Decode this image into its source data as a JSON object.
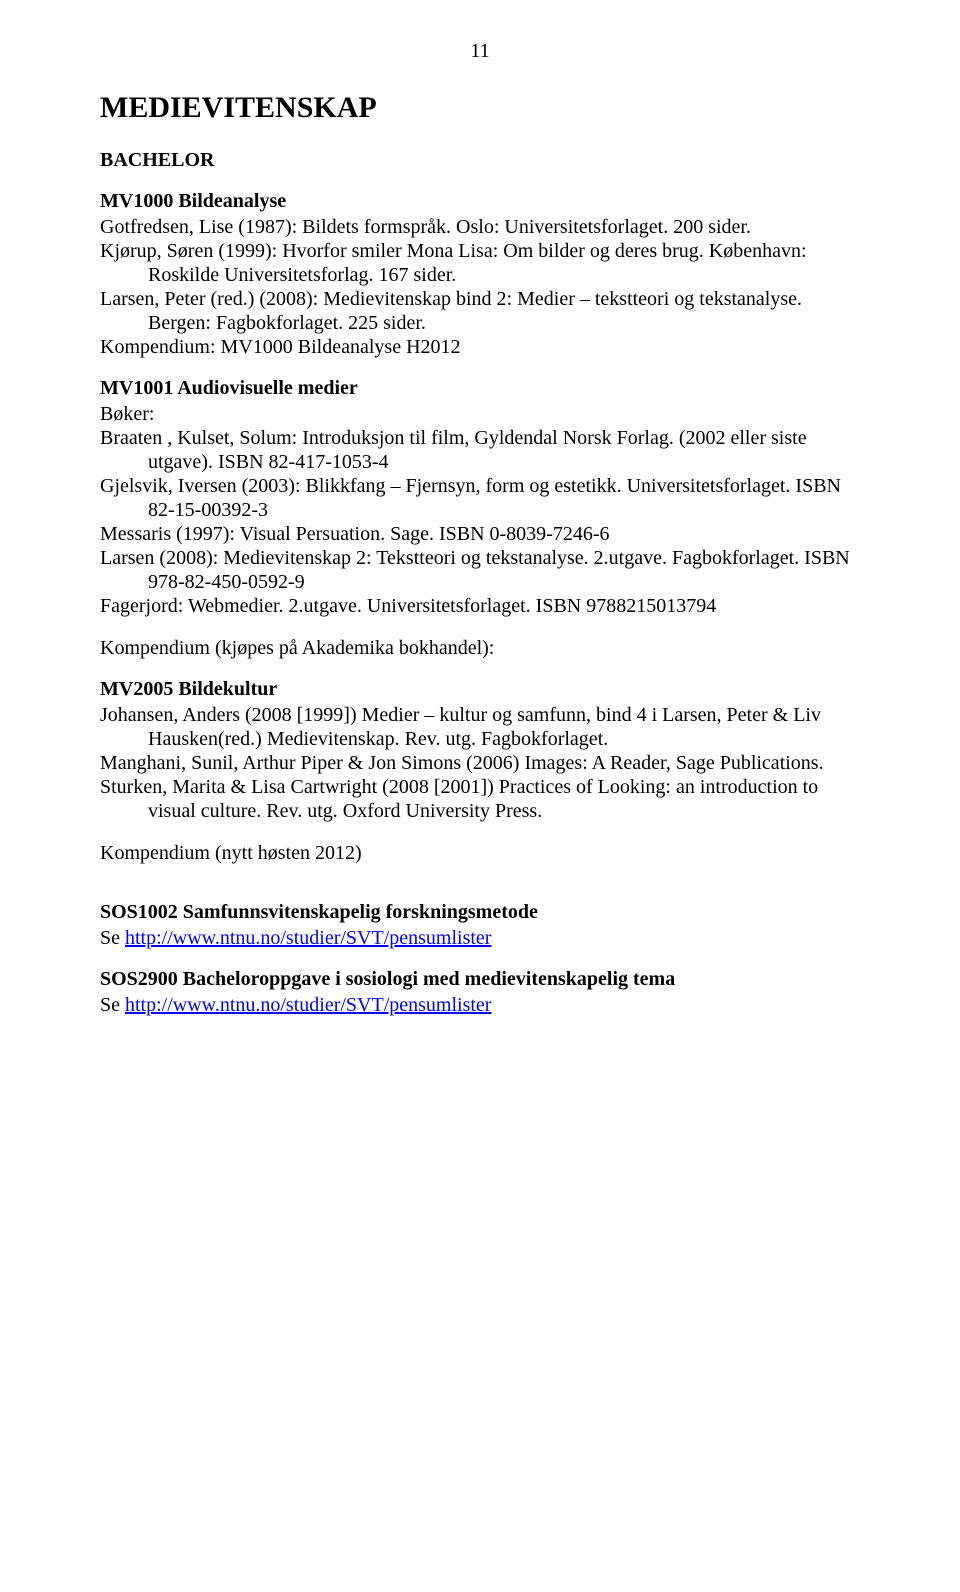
{
  "pageNumber": "11",
  "title": "MEDIEVITENSKAP",
  "degree": "BACHELOR",
  "mv1000": {
    "title": "MV1000 Bildeanalyse",
    "e1": "Gotfredsen, Lise (1987): Bildets formspråk. Oslo: Universitetsforlaget. 200 sider.",
    "e2": "Kjørup, Søren (1999): Hvorfor smiler Mona Lisa: Om bilder og deres brug. København: Roskilde Universitetsforlag. 167 sider.",
    "e3": "Larsen, Peter (red.) (2008): Medievitenskap bind 2: Medier – tekstteori og tekstanalyse. Bergen: Fagbokforlaget. 225 sider.",
    "e4": "Kompendium: MV1000 Bildeanalyse H2012"
  },
  "mv1001": {
    "title": "MV1001 Audiovisuelle medier",
    "booksLabel": "Bøker:",
    "e1": "Braaten , Kulset, Solum: Introduksjon til film, Gyldendal Norsk Forlag. (2002 eller siste utgave). ISBN 82-417-1053-4",
    "e2": "Gjelsvik, Iversen (2003): Blikkfang – Fjernsyn, form og estetikk. Universitetsforlaget. ISBN 82-15-00392-3",
    "e3": "Messaris (1997): Visual Persuation. Sage. ISBN 0-8039-7246-6",
    "e4": "Larsen (2008): Medievitenskap 2: Tekstteori og tekstanalyse. 2.utgave. Fagbokforlaget. ISBN 978-82-450-0592-9",
    "e5": "Fagerjord: Webmedier. 2.utgave. Universitetsforlaget. ISBN 9788215013794",
    "komp": "Kompendium (kjøpes på Akademika bokhandel):"
  },
  "mv2005": {
    "title": "MV2005 Bildekultur",
    "e1": "Johansen, Anders (2008 [1999]) Medier – kultur og samfunn, bind 4 i Larsen, Peter & Liv Hausken(red.) Medievitenskap. Rev. utg. Fagbokforlaget.",
    "e2": "Manghani, Sunil, Arthur Piper & Jon Simons (2006) Images: A Reader, Sage Publications.",
    "e3": "Sturken, Marita & Lisa Cartwright (2008 [2001]) Practices of Looking: an introduction to visual culture. Rev. utg. Oxford University Press.",
    "komp": "Kompendium (nytt høsten 2012)"
  },
  "sos1002": {
    "title": "SOS1002 Samfunnsvitenskapelig forskningsmetode",
    "sePrefix": "Se ",
    "url": "http://www.ntnu.no/studier/SVT/pensumlister"
  },
  "sos2900": {
    "title": "SOS2900 Bacheloroppgave i sosiologi med medievitenskapelig tema",
    "sePrefix": "Se ",
    "url": "http://www.ntnu.no/studier/SVT/pensumlister"
  }
}
